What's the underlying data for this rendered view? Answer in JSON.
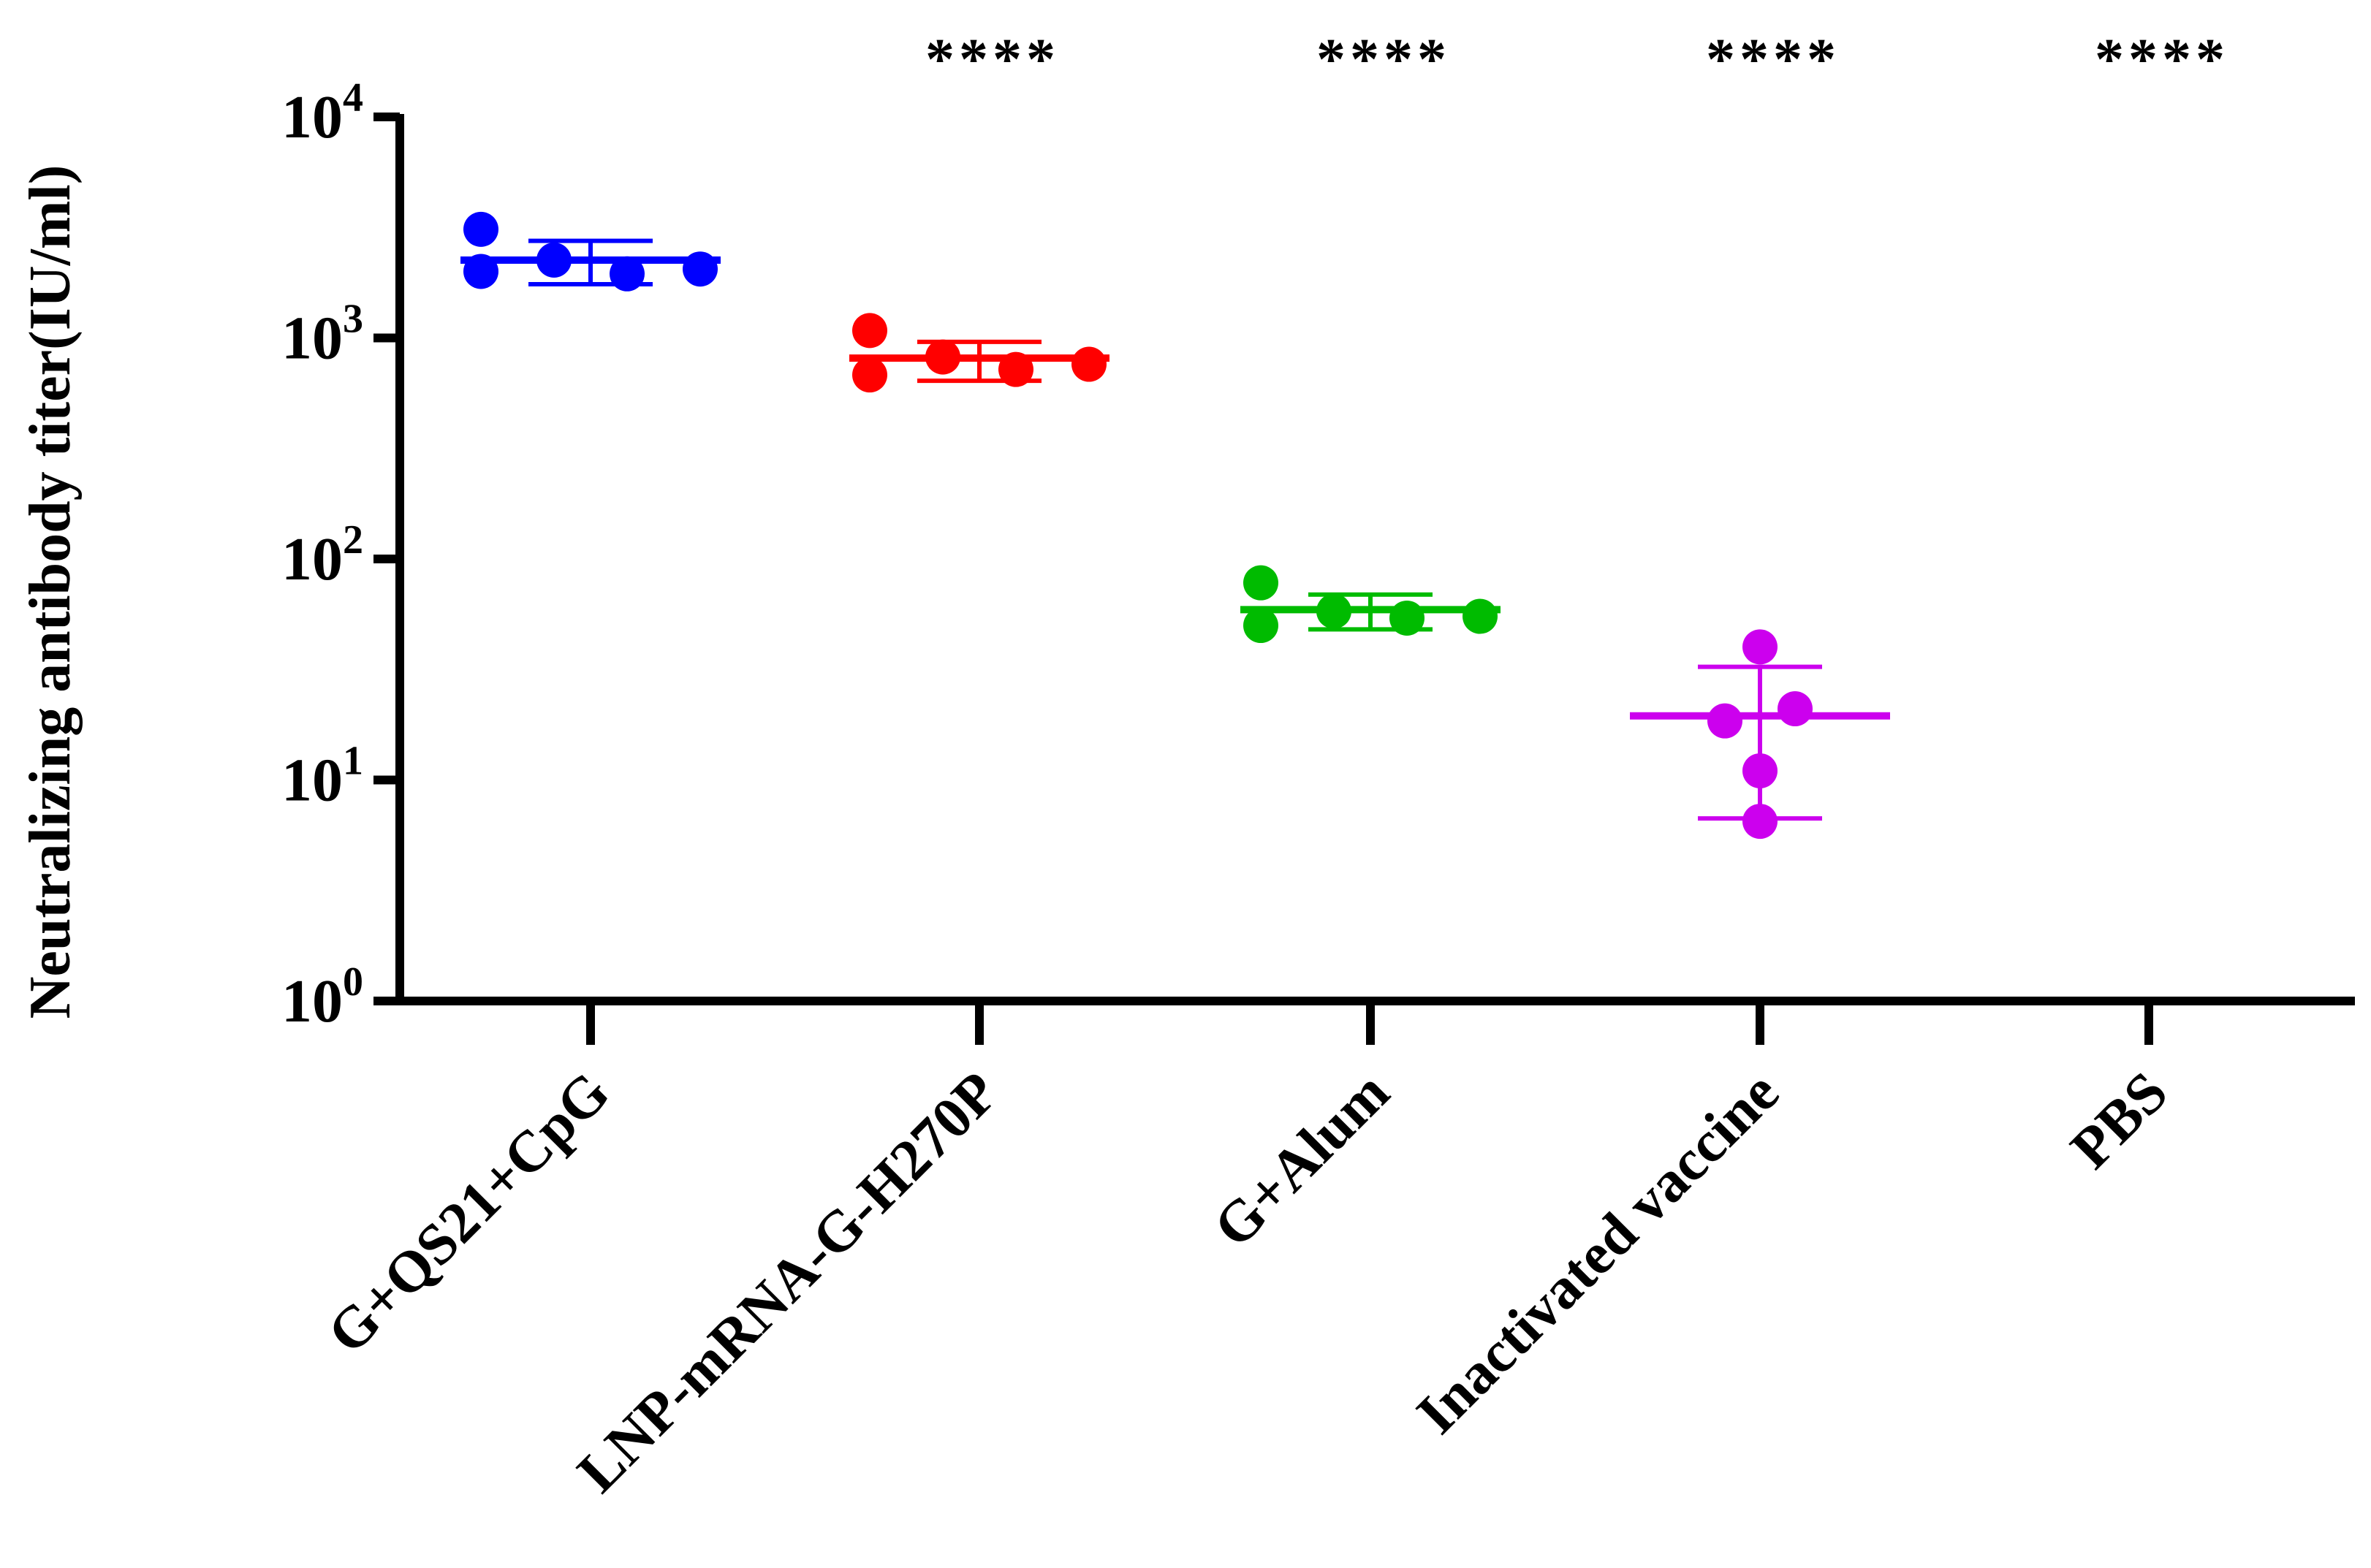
{
  "chart_data": {
    "type": "scatter",
    "ylabel": "Neutralizing antibody titer(IU/ml)",
    "xlabel": "",
    "yscale": "log",
    "ylim": [
      1,
      10000
    ],
    "yticks": [
      {
        "value": 1,
        "base": "10",
        "exp": "0"
      },
      {
        "value": 10,
        "base": "10",
        "exp": "1"
      },
      {
        "value": 100,
        "base": "10",
        "exp": "2"
      },
      {
        "value": 1000,
        "base": "10",
        "exp": "3"
      },
      {
        "value": 10000,
        "base": "10",
        "exp": "4"
      }
    ],
    "categories": [
      "G+QS21+CpG",
      "LNP-mRNA-G-H270P",
      "G+Alum",
      "Inactivated vaccine",
      "PBS"
    ],
    "groups": [
      {
        "category": "G+QS21+CpG",
        "color": "#0000ff",
        "points": [
          3100,
          2000,
          2250,
          1950,
          2050
        ],
        "mean": 2250,
        "error": [
          1750,
          2750
        ],
        "significance": ""
      },
      {
        "category": "LNP-mRNA-G-H270P",
        "color": "#ff0000",
        "points": [
          1080,
          680,
          820,
          720,
          760
        ],
        "mean": 810,
        "error": [
          640,
          960
        ],
        "significance": "****"
      },
      {
        "category": "G+Alum",
        "color": "#00bb00",
        "points": [
          78,
          50,
          58,
          54,
          55
        ],
        "mean": 59,
        "error": [
          48,
          69
        ],
        "significance": "****"
      },
      {
        "category": "Inactivated vaccine",
        "color": "#cc00ee",
        "points": [
          40,
          18.5,
          21,
          11,
          6.5
        ],
        "mean": 19.5,
        "error": [
          6.7,
          32.5
        ],
        "significance": "****"
      },
      {
        "category": "PBS",
        "color": "#000000",
        "points": [],
        "mean": null,
        "error": null,
        "significance": "****"
      }
    ],
    "grid": false,
    "legend": "none"
  }
}
